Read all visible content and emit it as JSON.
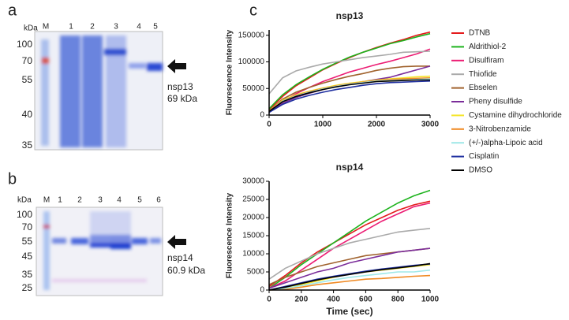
{
  "panel_labels": [
    "a",
    "b",
    "c"
  ],
  "gel_a": {
    "unit": "kDa",
    "lanes": [
      "M",
      "1",
      "2",
      "3",
      "4",
      "5"
    ],
    "markers": [
      "100",
      "70",
      "55",
      "40",
      "35"
    ],
    "protein": "nsp13",
    "mass": "69 kDa"
  },
  "gel_b": {
    "unit": "kDa",
    "lanes": [
      "M",
      "1",
      "2",
      "3",
      "4",
      "5",
      "6"
    ],
    "markers": [
      "100",
      "70",
      "55",
      "45",
      "35",
      "25"
    ],
    "protein": "nsp14",
    "mass": "60.9 kDa"
  },
  "chart_data": [
    {
      "type": "line",
      "title": "nsp13",
      "ylabel": "Fluorescence Intensity",
      "x": [
        0,
        250,
        500,
        750,
        1000,
        1250,
        1500,
        1750,
        2000,
        2250,
        2500,
        2750,
        3000
      ],
      "xlim": [
        0,
        3000
      ],
      "xticks": [
        0,
        1000,
        2000,
        3000
      ],
      "ylim": [
        0,
        160000
      ],
      "yticks": [
        0,
        50000,
        100000,
        150000
      ],
      "series": [
        {
          "name": "DTNB",
          "color": "#e41a1c",
          "values": [
            10000,
            35000,
            55000,
            70000,
            85000,
            97000,
            108000,
            118000,
            127000,
            135000,
            142000,
            150000,
            156000
          ]
        },
        {
          "name": "Aldrithiol-2",
          "color": "#1db31d",
          "values": [
            12000,
            38000,
            57000,
            72000,
            86000,
            98000,
            109000,
            118000,
            126000,
            134000,
            140000,
            147000,
            153000
          ]
        },
        {
          "name": "Disulfiram",
          "color": "#ec1c73",
          "values": [
            5000,
            25000,
            40000,
            52000,
            63000,
            72000,
            81000,
            88000,
            95000,
            101000,
            108000,
            115000,
            124000
          ]
        },
        {
          "name": "Thiofide",
          "color": "#aaaaaa",
          "values": [
            40000,
            70000,
            83000,
            90000,
            96000,
            100000,
            104000,
            108000,
            111000,
            114000,
            118000,
            119000,
            120000
          ]
        },
        {
          "name": "Ebselen",
          "color": "#a0622d",
          "values": [
            8000,
            30000,
            43000,
            52000,
            60000,
            67000,
            73000,
            78000,
            84000,
            88000,
            91000,
            92000,
            92000
          ]
        },
        {
          "name": "Pheny disulfide",
          "color": "#7b2d9a",
          "values": [
            5000,
            22000,
            33000,
            41000,
            48000,
            54000,
            59000,
            63000,
            67000,
            71000,
            78000,
            85000,
            92000
          ]
        },
        {
          "name": "Cystamine dihydrochloride",
          "color": "#f5e52a",
          "values": [
            8000,
            28000,
            38000,
            45000,
            51000,
            56000,
            60000,
            63000,
            66000,
            68000,
            70000,
            72000,
            73000
          ]
        },
        {
          "name": "3-Nitrobenzamide",
          "color": "#f08a24",
          "values": [
            8000,
            27000,
            37000,
            44000,
            50000,
            55000,
            59000,
            62000,
            65000,
            67000,
            68000,
            69000,
            70000
          ]
        },
        {
          "name": "(+/-)alpha-Lipoic acid",
          "color": "#9fe8e8",
          "values": [
            7000,
            26000,
            36000,
            43000,
            49000,
            54000,
            58000,
            61000,
            64000,
            65000,
            66000,
            67000,
            68000
          ]
        },
        {
          "name": "Cisplatin",
          "color": "#1f2fa0",
          "values": [
            5000,
            20000,
            30000,
            37000,
            43000,
            48000,
            52000,
            56000,
            59000,
            61000,
            62000,
            63000,
            64000
          ]
        },
        {
          "name": "DMSO",
          "color": "#000000",
          "values": [
            7000,
            25000,
            35000,
            42000,
            48000,
            53000,
            57000,
            60000,
            63000,
            64000,
            65000,
            66000,
            66000
          ]
        }
      ]
    },
    {
      "type": "line",
      "title": "nsp14",
      "ylabel": "Fluorescence Intensity",
      "xlabel": "Time (sec)",
      "x": [
        0,
        100,
        200,
        300,
        400,
        500,
        600,
        700,
        800,
        900,
        1000
      ],
      "xlim": [
        0,
        1000
      ],
      "xticks": [
        0,
        200,
        400,
        600,
        800,
        1000
      ],
      "ylim": [
        0,
        30000
      ],
      "yticks": [
        0,
        5000,
        10000,
        15000,
        20000,
        25000,
        30000
      ],
      "series": [
        {
          "color": "#e41a1c",
          "values": [
            1000,
            4000,
            7500,
            10500,
            13000,
            15500,
            18000,
            20000,
            22000,
            23500,
            24500
          ]
        },
        {
          "color": "#1db31d",
          "values": [
            500,
            3500,
            7000,
            10000,
            13000,
            16000,
            19000,
            21500,
            24000,
            26000,
            27500
          ]
        },
        {
          "color": "#ec1c73",
          "values": [
            500,
            2500,
            5500,
            8500,
            11500,
            14000,
            16500,
            19000,
            21000,
            23000,
            24000
          ]
        },
        {
          "color": "#aaaaaa",
          "values": [
            3000,
            6000,
            8000,
            10000,
            11500,
            13000,
            14000,
            15000,
            16000,
            16500,
            17000
          ]
        },
        {
          "color": "#a0622d",
          "values": [
            1500,
            3500,
            5000,
            6500,
            7500,
            8500,
            9500,
            10000,
            10500,
            11000,
            11500
          ]
        },
        {
          "color": "#7b2d9a",
          "values": [
            500,
            2000,
            3500,
            5000,
            6000,
            7500,
            8500,
            9500,
            10500,
            11000,
            11500
          ]
        },
        {
          "color": "#f5e52a",
          "values": [
            0,
            500,
            1500,
            2500,
            3500,
            4500,
            5000,
            5500,
            6000,
            6500,
            7000
          ]
        },
        {
          "color": "#f08a24",
          "values": [
            0,
            200,
            800,
            1500,
            2000,
            2500,
            3000,
            3200,
            3500,
            3800,
            4000
          ]
        },
        {
          "color": "#9fe8e8",
          "values": [
            0,
            500,
            1200,
            2000,
            2800,
            3500,
            4000,
            4500,
            5000,
            5000,
            5500
          ]
        },
        {
          "color": "#1f2fa0",
          "values": [
            0,
            1000,
            2000,
            3000,
            3800,
            4500,
            5200,
            5800,
            6300,
            6800,
            7200
          ]
        },
        {
          "color": "#000000",
          "values": [
            0,
            800,
            1800,
            2800,
            3600,
            4300,
            5000,
            5600,
            6100,
            6600,
            7300
          ]
        }
      ]
    }
  ]
}
